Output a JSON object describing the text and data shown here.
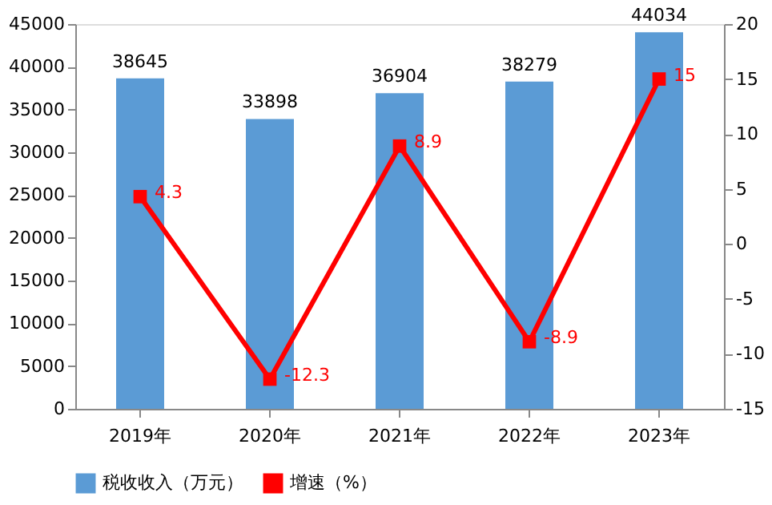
{
  "chart_data": {
    "type": "bar",
    "categories": [
      "2019年",
      "2020年",
      "2021年",
      "2022年",
      "2023年"
    ],
    "series": [
      {
        "name": "税收收入（万元）",
        "color": "#5b9bd5",
        "values": [
          38645,
          33898,
          36904,
          38279,
          44034
        ]
      },
      {
        "name": "增速（%）",
        "type": "line",
        "axis": "y2",
        "color": "#ff0000",
        "values": [
          4.3,
          -12.3,
          8.9,
          -8.9,
          15
        ]
      }
    ],
    "ylim": [
      0,
      45000
    ],
    "yticks": [
      0,
      5000,
      10000,
      15000,
      20000,
      25000,
      30000,
      35000,
      40000,
      45000
    ],
    "y2lim": [
      -15,
      20
    ],
    "y2ticks": [
      -15,
      -10,
      -5,
      0,
      5,
      10,
      15,
      20
    ],
    "legend": "bottom",
    "data_labels": true,
    "marker": "square",
    "line_style": "solid"
  }
}
